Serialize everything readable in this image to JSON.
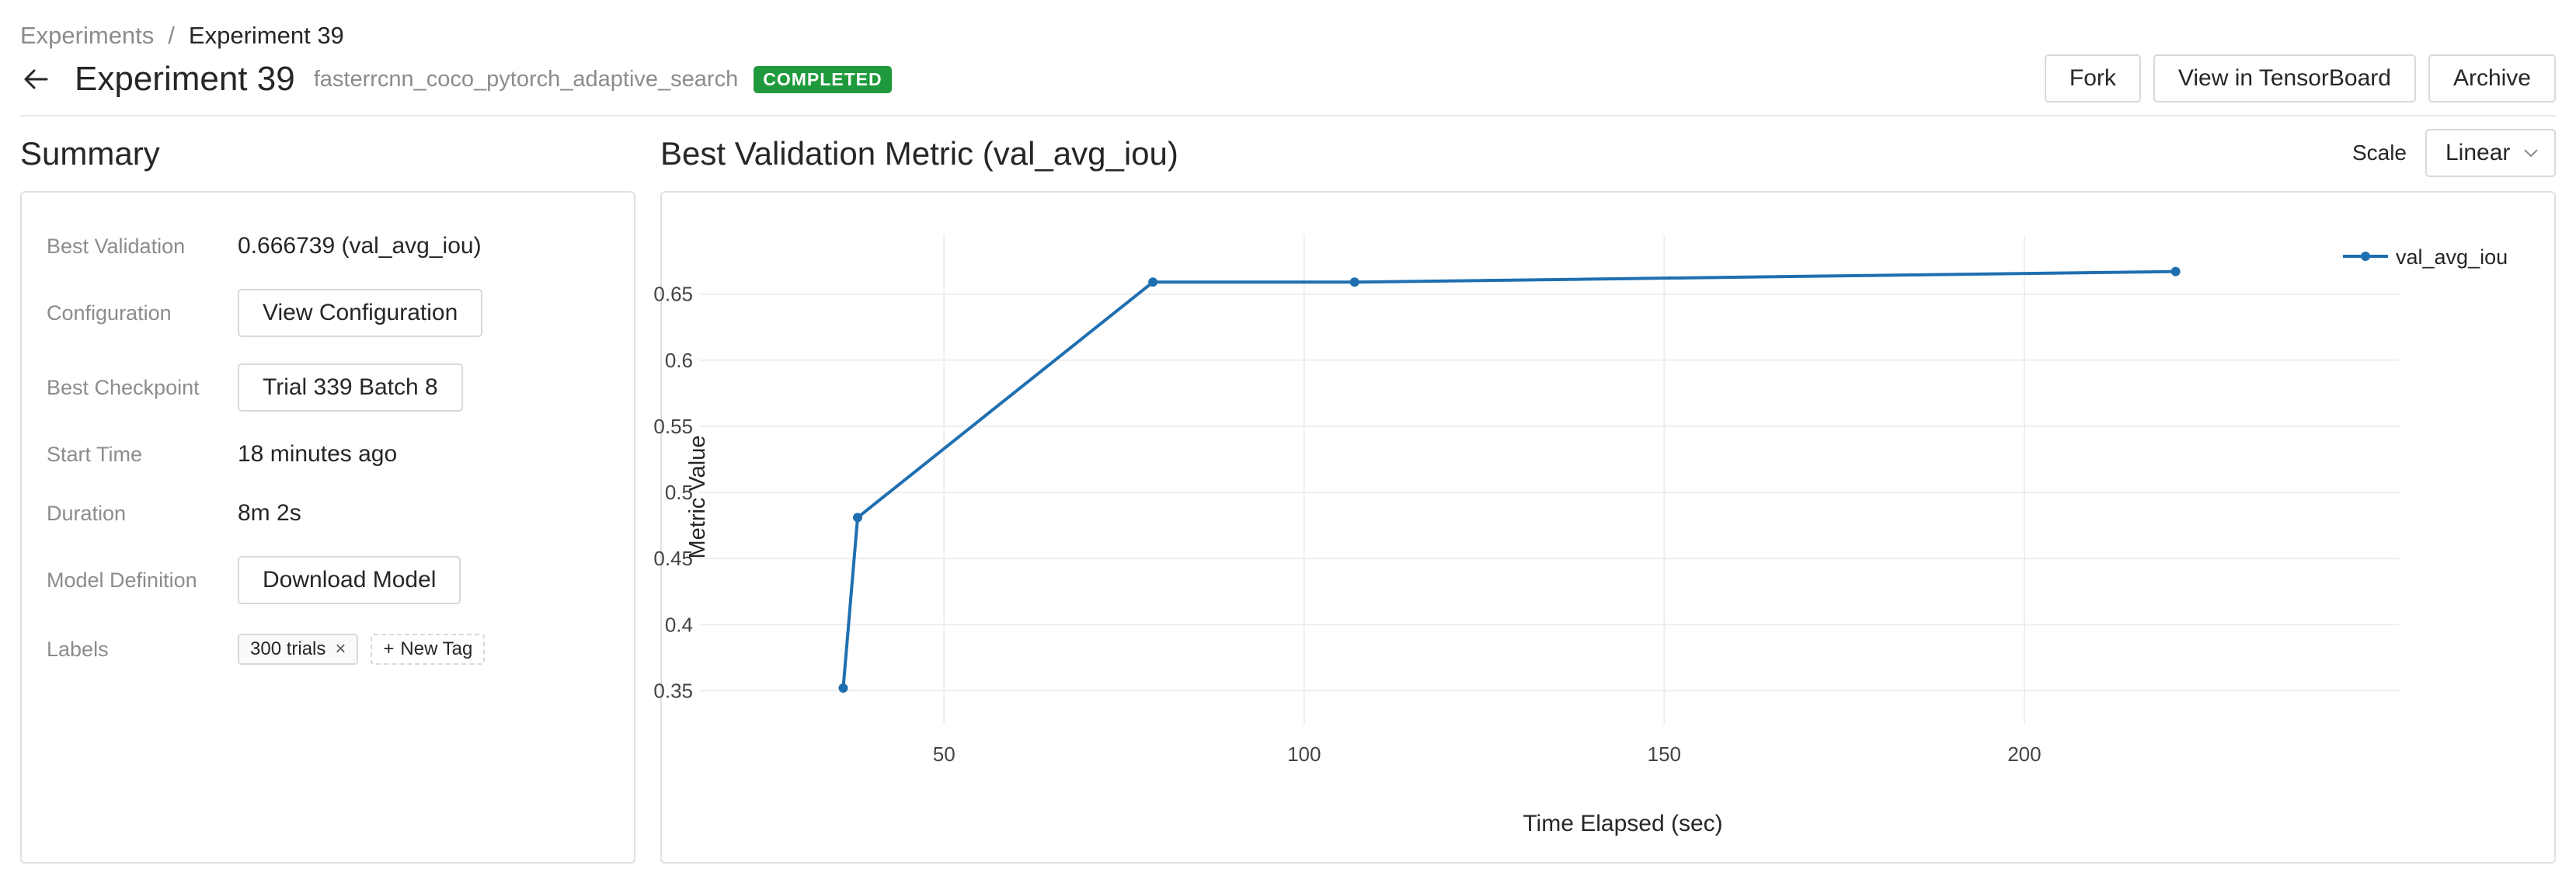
{
  "breadcrumb": {
    "root": "Experiments",
    "separator": "/",
    "current": "Experiment 39"
  },
  "header": {
    "title": "Experiment 39",
    "subtitle": "fasterrcnn_coco_pytorch_adaptive_search",
    "status": "COMPLETED",
    "status_color": "#1e9a3c",
    "back_icon": "arrow-left-icon"
  },
  "actions": {
    "fork": "Fork",
    "tensorboard": "View in TensorBoard",
    "archive": "Archive"
  },
  "summary": {
    "title": "Summary",
    "best_validation_label": "Best Validation",
    "best_validation_value": "0.666739 (val_avg_iou)",
    "configuration_label": "Configuration",
    "configuration_button": "View Configuration",
    "best_checkpoint_label": "Best Checkpoint",
    "best_checkpoint_button": "Trial 339 Batch 8",
    "start_time_label": "Start Time",
    "start_time_value": "18 minutes ago",
    "duration_label": "Duration",
    "duration_value": "8m 2s",
    "model_definition_label": "Model Definition",
    "model_definition_button": "Download Model",
    "labels_label": "Labels",
    "tags": [
      "300 trials"
    ],
    "new_tag": "New Tag"
  },
  "chart_panel": {
    "title": "Best Validation Metric (val_avg_iou)",
    "scale_label": "Scale",
    "scale_value": "Linear"
  },
  "chart_data": {
    "type": "line",
    "xlabel": "Time Elapsed (sec)",
    "ylabel": "Metric Value",
    "xlim": [
      16,
      252
    ],
    "ylim": [
      0.325,
      0.695
    ],
    "xticks": [
      50,
      100,
      150,
      200
    ],
    "yticks": [
      0.35,
      0.4,
      0.45,
      0.5,
      0.55,
      0.6,
      0.65
    ],
    "grid": true,
    "legend_position": "top-right",
    "series": [
      {
        "name": "val_avg_iou",
        "color": "#1f6fb0",
        "x": [
          36,
          38,
          79,
          107,
          221
        ],
        "y": [
          0.352,
          0.481,
          0.659,
          0.659,
          0.667
        ]
      }
    ]
  }
}
